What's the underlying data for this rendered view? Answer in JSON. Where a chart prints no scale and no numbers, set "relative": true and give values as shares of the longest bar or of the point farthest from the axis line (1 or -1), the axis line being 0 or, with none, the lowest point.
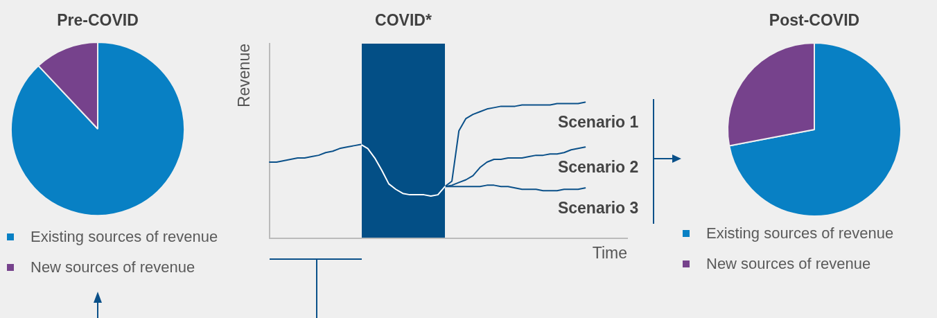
{
  "chart_data": [
    {
      "type": "pie",
      "title": "Pre-COVID",
      "categories": [
        "Existing sources of revenue",
        "New sources of revenue"
      ],
      "values": [
        88,
        12
      ],
      "colors": [
        "#0880c4",
        "#76428c"
      ],
      "legend": "bottom"
    },
    {
      "type": "line",
      "title": "COVID*",
      "xlabel": "Time",
      "ylabel": "Revenue",
      "relative": true,
      "grid": false,
      "marker": "none",
      "categories": [
        null,
        null,
        null,
        null,
        null,
        null,
        null,
        null,
        null,
        null,
        null,
        null,
        null,
        null,
        null,
        null,
        null,
        null,
        null,
        null,
        null,
        null,
        null,
        null,
        null,
        null,
        null,
        null,
        null,
        null,
        null,
        null,
        null,
        null,
        null,
        null,
        null,
        null,
        null,
        null,
        null,
        null,
        null,
        null,
        null,
        null,
        null,
        null,
        null,
        null,
        null,
        null
      ],
      "series": [
        {
          "color": "#0a5089",
          "values": [
            0.56,
            0.56,
            0.57,
            0.58,
            0.59,
            0.59,
            0.6,
            0.61,
            0.63,
            0.64,
            0.66,
            0.67,
            0.68,
            0.69,
            null,
            null,
            null,
            null,
            null,
            null,
            null,
            null,
            null,
            null,
            null,
            null,
            null,
            null,
            null,
            null,
            null,
            null,
            null,
            null,
            null,
            null,
            null,
            null,
            null,
            null,
            null,
            null,
            null,
            null,
            null,
            null,
            null,
            null,
            null,
            null,
            null,
            null
          ]
        },
        {
          "color": "#ffffff",
          "values": [
            null,
            null,
            null,
            null,
            null,
            null,
            null,
            null,
            null,
            null,
            null,
            null,
            null,
            0.69,
            0.66,
            0.59,
            0.5,
            0.4,
            0.36,
            0.33,
            0.32,
            0.32,
            0.32,
            0.31,
            0.32,
            0.38,
            null,
            null,
            null,
            null,
            null,
            null,
            null,
            null,
            null,
            null,
            null,
            null,
            null,
            null,
            null,
            null,
            null,
            null,
            null,
            null,
            null,
            null,
            null,
            null,
            null,
            null
          ]
        },
        {
          "name": "Scenario 1",
          "color": "#0a5089",
          "values": [
            null,
            null,
            null,
            null,
            null,
            null,
            null,
            null,
            null,
            null,
            null,
            null,
            null,
            null,
            null,
            null,
            null,
            null,
            null,
            null,
            null,
            null,
            null,
            null,
            null,
            0.38,
            0.42,
            0.79,
            0.88,
            0.91,
            0.93,
            0.95,
            0.96,
            0.97,
            0.97,
            0.97,
            0.98,
            0.98,
            0.98,
            0.98,
            0.98,
            0.99,
            0.99,
            0.99,
            0.99,
            1,
            null,
            null,
            null,
            null,
            null,
            null
          ]
        },
        {
          "name": "Scenario 2",
          "color": "#0a5089",
          "values": [
            null,
            null,
            null,
            null,
            null,
            null,
            null,
            null,
            null,
            null,
            null,
            null,
            null,
            null,
            null,
            null,
            null,
            null,
            null,
            null,
            null,
            null,
            null,
            null,
            null,
            0.38,
            0.39,
            0.41,
            0.43,
            0.46,
            0.52,
            0.56,
            0.58,
            0.58,
            0.59,
            0.59,
            0.59,
            0.6,
            0.61,
            0.61,
            0.62,
            0.62,
            0.63,
            0.65,
            0.66,
            0.67,
            null,
            null,
            null,
            null,
            null,
            null
          ]
        },
        {
          "name": "Scenario 3",
          "color": "#0a5089",
          "values": [
            null,
            null,
            null,
            null,
            null,
            null,
            null,
            null,
            null,
            null,
            null,
            null,
            null,
            null,
            null,
            null,
            null,
            null,
            null,
            null,
            null,
            null,
            null,
            null,
            null,
            0.38,
            0.38,
            0.38,
            0.38,
            0.38,
            0.38,
            0.39,
            0.39,
            0.38,
            0.38,
            0.37,
            0.36,
            0.36,
            0.36,
            0.35,
            0.35,
            0.35,
            0.36,
            0.36,
            0.36,
            0.37,
            null,
            null,
            null,
            null,
            null,
            null
          ]
        }
      ]
    },
    {
      "type": "pie",
      "title": "Post-COVID",
      "categories": [
        "Existing sources of revenue",
        "New sources of revenue"
      ],
      "values": [
        72,
        28
      ],
      "colors": [
        "#0880c4",
        "#76428c"
      ],
      "legend": "bottom"
    }
  ]
}
